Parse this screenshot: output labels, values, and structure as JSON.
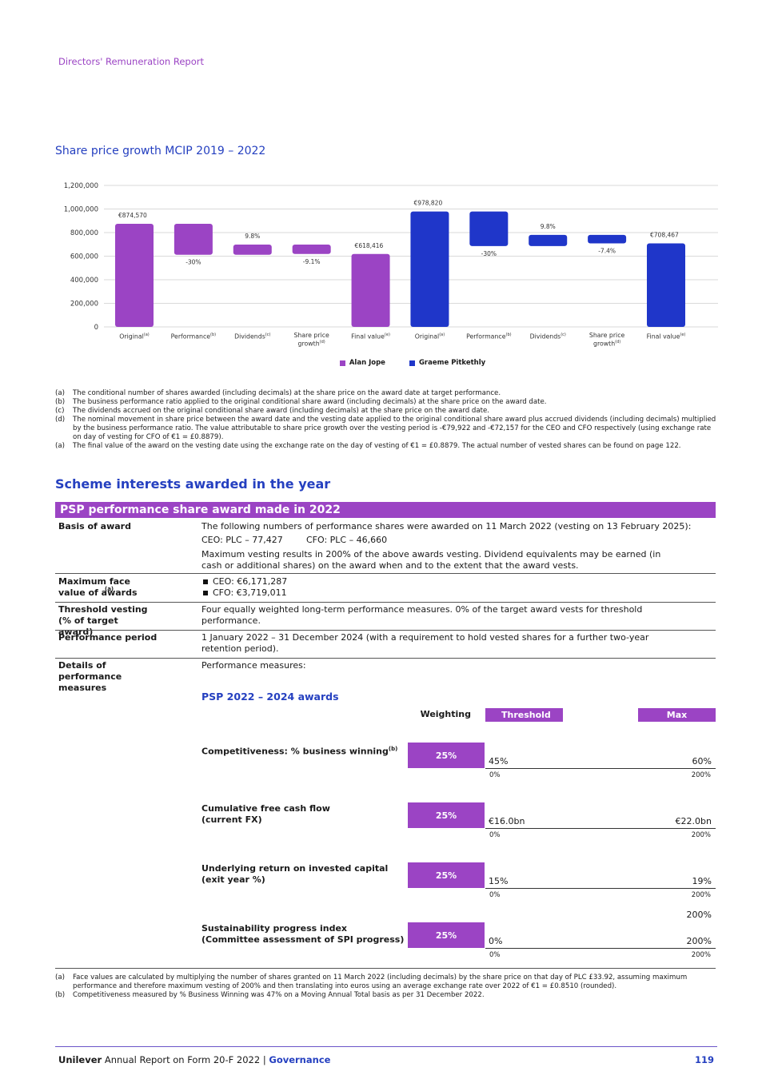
{
  "header": {
    "title": "Directors' Remuneration Report"
  },
  "chart_data": {
    "type": "waterfall",
    "title": "Share price growth MCIP 2019 – 2022",
    "categories": [
      "Original",
      "Performance",
      "Dividends",
      "Share price growth",
      "Final value",
      "Original",
      "Performance",
      "Dividends",
      "Share price growth",
      "Final value"
    ],
    "category_notes": [
      "(a)",
      "(b)",
      "(c)",
      "(d)",
      "(e)",
      "(a)",
      "(b)",
      "(c)",
      "(d)",
      "(e)"
    ],
    "series": [
      {
        "name": "Alan Jope",
        "color": "#9b44c4",
        "values": [
          874570,
          -262371,
          86139,
          -79922,
          618416,
          null,
          null,
          null,
          null,
          null
        ],
        "value_labels": [
          "€874,570",
          "-30%",
          "9.8%",
          "-9.1%",
          "€618,416",
          null,
          null,
          null,
          null,
          null
        ]
      },
      {
        "name": "Graeme Pitkethly",
        "color": "#1f36c9",
        "values": [
          null,
          null,
          null,
          null,
          null,
          978820,
          -293646,
          95450,
          -72157,
          708467
        ],
        "value_labels": [
          null,
          null,
          null,
          null,
          null,
          "€978,820",
          "-30%",
          "9.8%",
          "-7.4%",
          "€708,467"
        ]
      }
    ],
    "ylim": [
      0,
      1200000
    ],
    "yticks": [
      0,
      {
        "value": 200000,
        "label": "200,000"
      },
      {
        "value": 400000,
        "label": "400,000"
      },
      {
        "value": 600000,
        "label": "600,000"
      },
      {
        "value": 800000,
        "label": "800,000"
      },
      {
        "value": 1000000,
        "label": "1,000,000"
      },
      {
        "value": 1200000,
        "label": "1,200,000"
      }
    ],
    "grid": true,
    "legend": "bottom"
  },
  "chart_notes": [
    {
      "mark": "(a)",
      "text": "The conditional number of shares awarded (including decimals) at the share price on the award date at target performance."
    },
    {
      "mark": "(b)",
      "text": "The business performance ratio applied to the original conditional share award (including decimals) at the share price on the award date."
    },
    {
      "mark": "(c)",
      "text": "The dividends accrued on the original conditional share award (including decimals) at the share price on the award date."
    },
    {
      "mark": "(d)",
      "text": "The nominal movement in share price between the award date and the vesting date applied to the original conditional share award plus accrued dividends (including decimals) multiplied by the business performance ratio. The value attributable to share price growth over the vesting period is -€79,922 and -€72,157 for the CEO and CFO respectively (using exchange rate on day of vesting for CFO of €1 = £0.8879)."
    },
    {
      "mark": "(a)",
      "text": "The final value of the award on the vesting date using the exchange rate on the day of vesting of €1 = £0.8879. The actual number of vested shares can be found on page 122."
    }
  ],
  "section_title": "Scheme interests awarded in the year",
  "table": {
    "title": "PSP performance share award made in 2022",
    "rows": [
      {
        "label": "Basis of award",
        "text": "The following numbers of performance shares were awarded on 11 March 2022 (vesting on 13 February 2025):",
        "ceo": "CEO: PLC – 77,427",
        "cfo": "CFO: PLC – 46,660",
        "text2": "Maximum vesting results in 200% of the above awards vesting. Dividend equivalents may be earned (in cash or additional shares) on the award when and to the extent that the award vests."
      },
      {
        "label": "Maximum face value of awards",
        "label_note": "(a)",
        "items": [
          "CEO: €6,171,287",
          "CFO: €3,719,011"
        ]
      },
      {
        "label": "Threshold vesting (% of target award)",
        "text": "Four equally weighted long-term performance measures. 0% of the target award vests for threshold performance."
      },
      {
        "label": "Performance period",
        "text": "1 January 2022 – 31 December 2024 (with a requirement to hold vested shares for a further two-year retention period)."
      },
      {
        "label": "Details of performance measures",
        "text": "Performance measures:"
      }
    ],
    "measures": {
      "title": "PSP 2022 – 2024 awards",
      "headers": [
        "Weighting",
        "Threshold",
        "Max"
      ],
      "rows": [
        {
          "name": "Competitiveness: % business winning",
          "note": "(b)",
          "weighting": "25%",
          "threshold": "45%",
          "max": "60%",
          "threshold_vesting": "0%",
          "max_vesting": "200%"
        },
        {
          "name": "Cumulative free cash flow (current FX)",
          "weighting": "25%",
          "threshold": "€16.0bn",
          "max": "€22.0bn",
          "threshold_vesting": "0%",
          "max_vesting": "200%"
        },
        {
          "name": "Underlying return on invested capital (exit year %)",
          "weighting": "25%",
          "threshold": "15%",
          "max": "19%",
          "threshold_vesting": "0%",
          "max_vesting": "200%"
        },
        {
          "name": "Sustainability progress index (Committee assessment of SPI progress)",
          "weighting": "25%",
          "max_above": "200%",
          "threshold": "0%",
          "max": "200%",
          "threshold_vesting": "0%",
          "max_vesting": "200%"
        }
      ]
    }
  },
  "table_notes": [
    {
      "mark": "(a)",
      "text": "Face values are calculated by multiplying the number of shares granted on 11 March 2022 (including decimals) by the share price on that day of PLC £33.92, assuming maximum performance and therefore maximum vesting of 200% and then translating into euros using an average exchange rate over 2022 of €1 = £0.8510 (rounded)."
    },
    {
      "mark": "(b)",
      "text": "Competitiveness measured by % Business Winning was 47% on a Moving Annual Total basis as per 31 December 2022."
    }
  ],
  "footer": {
    "brand": "Unilever",
    "report": "Annual Report on Form 20-F 2022 |",
    "section": "Governance",
    "page": "119"
  }
}
